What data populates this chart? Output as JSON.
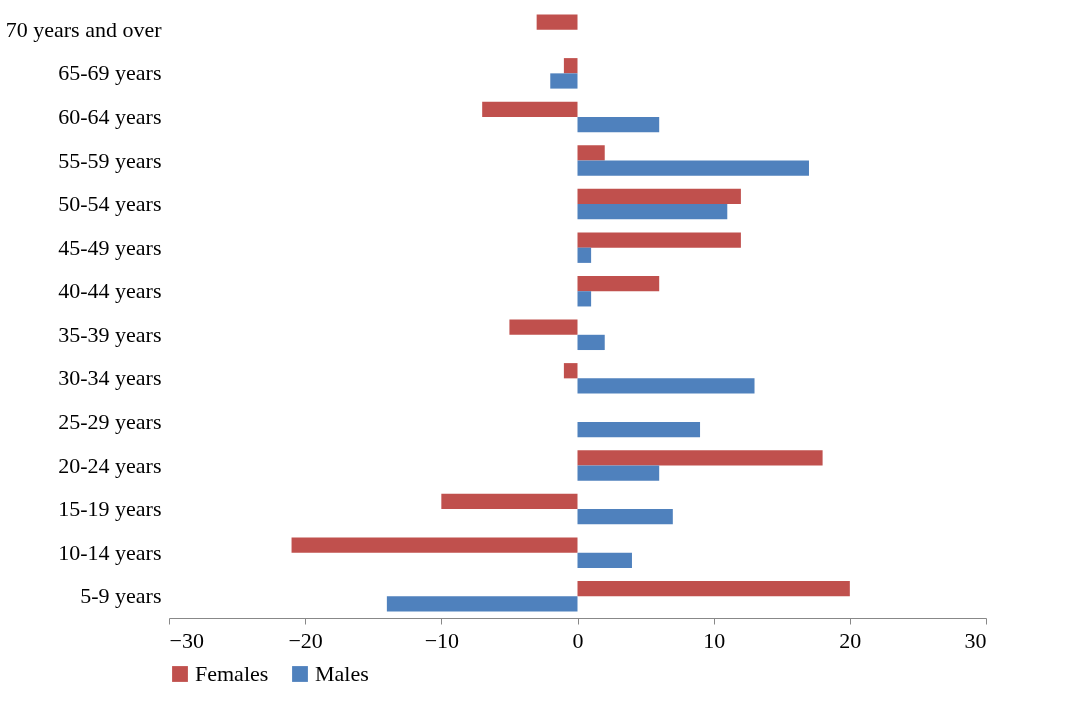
{
  "chart_data": {
    "type": "bar",
    "orientation": "horizontal",
    "categories": [
      "70 years and over",
      "65-69 years",
      "60-64 years",
      "55-59 years",
      "50-54 years",
      "45-49 years",
      "40-44 years",
      "35-39 years",
      "30-34 years",
      "25-29 years",
      "20-24 years",
      "15-19 years",
      "10-14 years",
      "5-9 years"
    ],
    "series": [
      {
        "name": "Females",
        "color": "#c0504d",
        "values": [
          -3,
          -1,
          -7,
          2,
          12,
          12,
          6,
          -5,
          -1,
          0,
          18,
          -10,
          -21,
          20
        ]
      },
      {
        "name": "Males",
        "color": "#4f81bd",
        "values": [
          0,
          -2,
          6,
          17,
          11,
          1,
          1,
          2,
          13,
          9,
          6,
          7,
          4,
          -14
        ]
      }
    ],
    "xlim": [
      -30,
      30
    ],
    "xticks": [
      -30,
      -20,
      -10,
      0,
      10,
      20,
      30
    ],
    "grid": false,
    "legend": "bottom"
  }
}
